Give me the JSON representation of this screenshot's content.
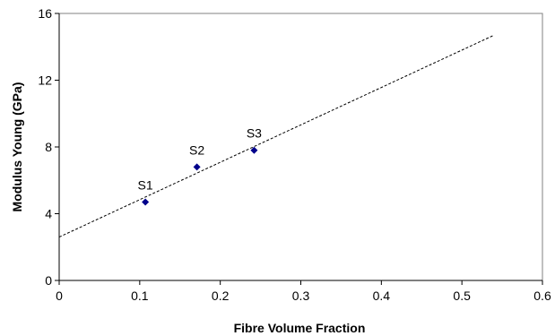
{
  "chart_data": {
    "type": "scatter",
    "title": "",
    "xlabel": "Fibre Volume Fraction",
    "ylabel": "Modulus Young (GPa)",
    "xlim": [
      0,
      0.6
    ],
    "ylim": [
      0,
      16
    ],
    "x_ticks": [
      "0",
      "0.1",
      "0.2",
      "0.3",
      "0.4",
      "0.5",
      "0.6"
    ],
    "y_ticks": [
      "0",
      "4",
      "8",
      "12",
      "16"
    ],
    "grid": false,
    "legend": "none",
    "series": [
      {
        "marker": "diamond",
        "color": "#00008b",
        "points": [
          {
            "label": "S1",
            "x": 0.107,
            "y": 4.7
          },
          {
            "label": "S2",
            "x": 0.171,
            "y": 6.8
          },
          {
            "label": "S3",
            "x": 0.242,
            "y": 7.8
          }
        ]
      }
    ],
    "trendline": {
      "style": "dotted",
      "color": "#000000",
      "x_start": 0,
      "x_end": 0.54,
      "y_start": 2.6,
      "y_end": 14.7
    }
  }
}
